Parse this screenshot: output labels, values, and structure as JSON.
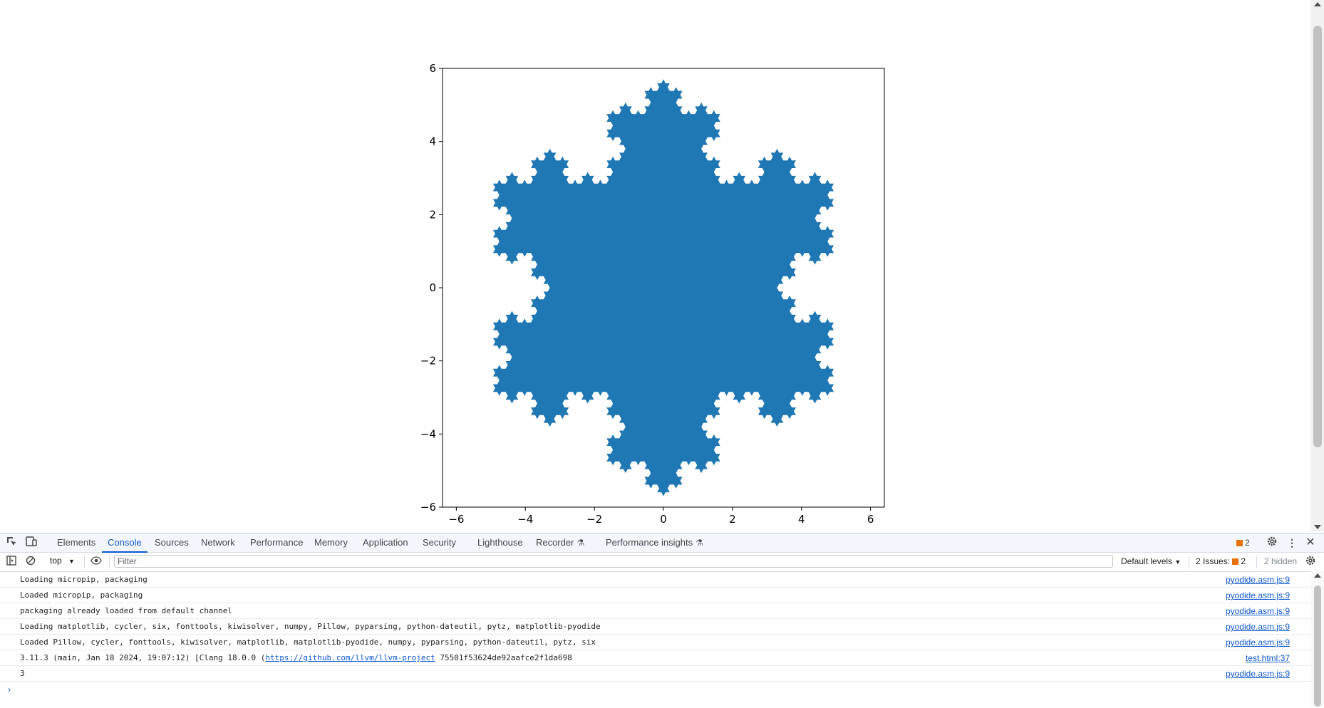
{
  "chart_data": {
    "type": "area",
    "title": "",
    "xlabel": "",
    "ylabel": "",
    "xlim": [
      -6.4,
      6.4
    ],
    "ylim": [
      -6.0,
      6.0
    ],
    "xticks": [
      -6,
      -4,
      -2,
      0,
      2,
      4,
      6
    ],
    "yticks": [
      6,
      4,
      2,
      0,
      -2,
      -4,
      -6
    ],
    "xtick_labels": [
      "−6",
      "−4",
      "−2",
      "0",
      "2",
      "4",
      "6"
    ],
    "ytick_labels": [
      "6",
      "4",
      "2",
      "0",
      "−2",
      "−4",
      "−6"
    ],
    "series": [
      {
        "shape": "koch snowflake (filled)",
        "recursion_order": 4,
        "radius": 5.7,
        "color": "#1f77b4"
      }
    ],
    "grid": false
  },
  "devtools": {
    "tabs": [
      "Elements",
      "Console",
      "Sources",
      "Network",
      "Performance",
      "Memory",
      "Application",
      "Security",
      "Lighthouse",
      "Recorder",
      "Performance insights"
    ],
    "active_tab": "Console",
    "issues_count": "2",
    "context": "top",
    "filter_placeholder": "Filter",
    "levels": "Default levels",
    "issues_label": "2 Issues:",
    "issues_num": "2",
    "hidden": "2 hidden"
  },
  "console": {
    "messages": [
      {
        "text": "Loading micropip, packaging",
        "source": "pyodide.asm.js:9"
      },
      {
        "text": "Loaded micropip, packaging",
        "source": "pyodide.asm.js:9"
      },
      {
        "text": "packaging already loaded from default channel",
        "source": "pyodide.asm.js:9"
      },
      {
        "text": "Loading matplotlib, cycler, six, fonttools, kiwisolver, numpy, Pillow, pyparsing, python-dateutil, pytz, matplotlib-pyodide",
        "source": "pyodide.asm.js:9"
      },
      {
        "text": "Loaded Pillow, cycler, fonttools, kiwisolver, matplotlib, matplotlib-pyodide, numpy, pyparsing, python-dateutil, pytz, six",
        "source": "pyodide.asm.js:9"
      },
      {
        "text_before": "3.11.3 (main, Jan 18 2024, 19:07:12) [Clang 18.0.0 (",
        "link": "https://github.com/llvm/llvm-project",
        "text_after": " 75501f53624de92aafce2f1da698",
        "source": "test.html:37"
      },
      {
        "text": "3",
        "source": "pyodide.asm.js:9"
      }
    ],
    "prompt": "›"
  }
}
